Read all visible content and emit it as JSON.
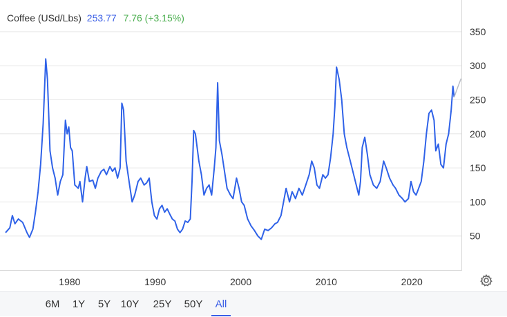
{
  "header": {
    "name": "Coffee (USd/Lbs)",
    "price": "253.77",
    "change": "7.76 (+3.15%)"
  },
  "colors": {
    "line": "#2f62e8",
    "tail": "#b9bdc6",
    "grid": "#e6e6e6",
    "price": "#3a5ee6",
    "change": "#4caf50",
    "active_range": "#3a5ee6"
  },
  "icons": {
    "settings": "gear-icon"
  },
  "ranges": [
    {
      "label": "6M",
      "active": false
    },
    {
      "label": "1Y",
      "active": false
    },
    {
      "label": "5Y",
      "active": false
    },
    {
      "label": "10Y",
      "active": false
    },
    {
      "label": "25Y",
      "active": false
    },
    {
      "label": "50Y",
      "active": false
    },
    {
      "label": "All",
      "active": true
    }
  ],
  "chart_data": {
    "type": "line",
    "title": "",
    "xlabel": "",
    "ylabel": "",
    "xlim": [
      1972.5,
      2026.2
    ],
    "ylim": [
      0,
      390
    ],
    "x_ticks": [
      1980,
      1990,
      2000,
      2010,
      2020
    ],
    "y_ticks": [
      50,
      100,
      150,
      200,
      250,
      300,
      350
    ],
    "grid": true,
    "y_axis_position": "right",
    "legend": "none",
    "series": [
      {
        "values": [
          [
            1972.5,
            55
          ],
          [
            1973.0,
            62
          ],
          [
            1973.3,
            80
          ],
          [
            1973.6,
            68
          ],
          [
            1974.0,
            75
          ],
          [
            1974.5,
            70
          ],
          [
            1975.0,
            55
          ],
          [
            1975.3,
            48
          ],
          [
            1975.7,
            60
          ],
          [
            1976.0,
            85
          ],
          [
            1976.3,
            115
          ],
          [
            1976.6,
            155
          ],
          [
            1976.9,
            215
          ],
          [
            1977.2,
            310
          ],
          [
            1977.4,
            280
          ],
          [
            1977.7,
            175
          ],
          [
            1978.0,
            150
          ],
          [
            1978.3,
            135
          ],
          [
            1978.6,
            110
          ],
          [
            1978.9,
            130
          ],
          [
            1979.2,
            140
          ],
          [
            1979.5,
            220
          ],
          [
            1979.7,
            200
          ],
          [
            1979.9,
            210
          ],
          [
            1980.1,
            180
          ],
          [
            1980.3,
            175
          ],
          [
            1980.6,
            125
          ],
          [
            1981.0,
            120
          ],
          [
            1981.2,
            130
          ],
          [
            1981.5,
            100
          ],
          [
            1981.8,
            135
          ],
          [
            1982.0,
            152
          ],
          [
            1982.3,
            130
          ],
          [
            1982.7,
            132
          ],
          [
            1983.0,
            120
          ],
          [
            1983.3,
            135
          ],
          [
            1983.7,
            145
          ],
          [
            1984.0,
            148
          ],
          [
            1984.3,
            140
          ],
          [
            1984.7,
            152
          ],
          [
            1985.0,
            145
          ],
          [
            1985.3,
            150
          ],
          [
            1985.6,
            135
          ],
          [
            1985.9,
            150
          ],
          [
            1986.1,
            245
          ],
          [
            1986.3,
            235
          ],
          [
            1986.6,
            160
          ],
          [
            1987.0,
            125
          ],
          [
            1987.3,
            100
          ],
          [
            1987.6,
            110
          ],
          [
            1988.0,
            130
          ],
          [
            1988.3,
            135
          ],
          [
            1988.7,
            125
          ],
          [
            1989.0,
            128
          ],
          [
            1989.3,
            135
          ],
          [
            1989.6,
            100
          ],
          [
            1989.9,
            80
          ],
          [
            1990.2,
            75
          ],
          [
            1990.5,
            90
          ],
          [
            1990.8,
            95
          ],
          [
            1991.1,
            85
          ],
          [
            1991.4,
            90
          ],
          [
            1991.7,
            82
          ],
          [
            1992.0,
            75
          ],
          [
            1992.3,
            72
          ],
          [
            1992.6,
            60
          ],
          [
            1992.9,
            55
          ],
          [
            1993.2,
            60
          ],
          [
            1993.5,
            72
          ],
          [
            1993.8,
            70
          ],
          [
            1994.1,
            75
          ],
          [
            1994.3,
            130
          ],
          [
            1994.5,
            205
          ],
          [
            1994.7,
            200
          ],
          [
            1994.9,
            180
          ],
          [
            1995.1,
            160
          ],
          [
            1995.4,
            140
          ],
          [
            1995.7,
            110
          ],
          [
            1996.0,
            120
          ],
          [
            1996.3,
            125
          ],
          [
            1996.6,
            110
          ],
          [
            1996.9,
            150
          ],
          [
            1997.1,
            180
          ],
          [
            1997.3,
            275
          ],
          [
            1997.5,
            190
          ],
          [
            1997.8,
            170
          ],
          [
            1998.1,
            145
          ],
          [
            1998.4,
            120
          ],
          [
            1998.8,
            110
          ],
          [
            1999.1,
            105
          ],
          [
            1999.5,
            135
          ],
          [
            1999.8,
            120
          ],
          [
            2000.1,
            100
          ],
          [
            2000.4,
            95
          ],
          [
            2000.8,
            75
          ],
          [
            2001.2,
            65
          ],
          [
            2001.6,
            58
          ],
          [
            2002.0,
            50
          ],
          [
            2002.4,
            45
          ],
          [
            2002.8,
            60
          ],
          [
            2003.2,
            58
          ],
          [
            2003.6,
            62
          ],
          [
            2004.0,
            68
          ],
          [
            2004.3,
            70
          ],
          [
            2004.7,
            80
          ],
          [
            2005.0,
            100
          ],
          [
            2005.3,
            120
          ],
          [
            2005.7,
            100
          ],
          [
            2006.0,
            115
          ],
          [
            2006.4,
            105
          ],
          [
            2006.8,
            120
          ],
          [
            2007.2,
            110
          ],
          [
            2007.6,
            125
          ],
          [
            2008.0,
            140
          ],
          [
            2008.3,
            160
          ],
          [
            2008.6,
            150
          ],
          [
            2008.9,
            125
          ],
          [
            2009.2,
            120
          ],
          [
            2009.6,
            140
          ],
          [
            2009.9,
            135
          ],
          [
            2010.2,
            140
          ],
          [
            2010.5,
            165
          ],
          [
            2010.8,
            200
          ],
          [
            2011.0,
            240
          ],
          [
            2011.2,
            298
          ],
          [
            2011.5,
            280
          ],
          [
            2011.8,
            250
          ],
          [
            2012.1,
            200
          ],
          [
            2012.4,
            180
          ],
          [
            2012.8,
            160
          ],
          [
            2013.1,
            145
          ],
          [
            2013.5,
            125
          ],
          [
            2013.8,
            110
          ],
          [
            2014.0,
            130
          ],
          [
            2014.2,
            180
          ],
          [
            2014.5,
            195
          ],
          [
            2014.8,
            170
          ],
          [
            2015.1,
            140
          ],
          [
            2015.5,
            125
          ],
          [
            2015.9,
            120
          ],
          [
            2016.3,
            130
          ],
          [
            2016.7,
            160
          ],
          [
            2017.0,
            150
          ],
          [
            2017.4,
            135
          ],
          [
            2017.8,
            125
          ],
          [
            2018.1,
            120
          ],
          [
            2018.5,
            110
          ],
          [
            2018.9,
            105
          ],
          [
            2019.2,
            100
          ],
          [
            2019.6,
            105
          ],
          [
            2019.9,
            130
          ],
          [
            2020.2,
            115
          ],
          [
            2020.5,
            110
          ],
          [
            2020.8,
            120
          ],
          [
            2021.1,
            130
          ],
          [
            2021.4,
            160
          ],
          [
            2021.7,
            200
          ],
          [
            2022.0,
            230
          ],
          [
            2022.3,
            235
          ],
          [
            2022.6,
            220
          ],
          [
            2022.8,
            175
          ],
          [
            2023.1,
            185
          ],
          [
            2023.4,
            155
          ],
          [
            2023.7,
            150
          ],
          [
            2024.0,
            185
          ],
          [
            2024.3,
            200
          ],
          [
            2024.6,
            235
          ],
          [
            2024.8,
            270
          ],
          [
            2024.95,
            253.77
          ]
        ]
      }
    ]
  }
}
